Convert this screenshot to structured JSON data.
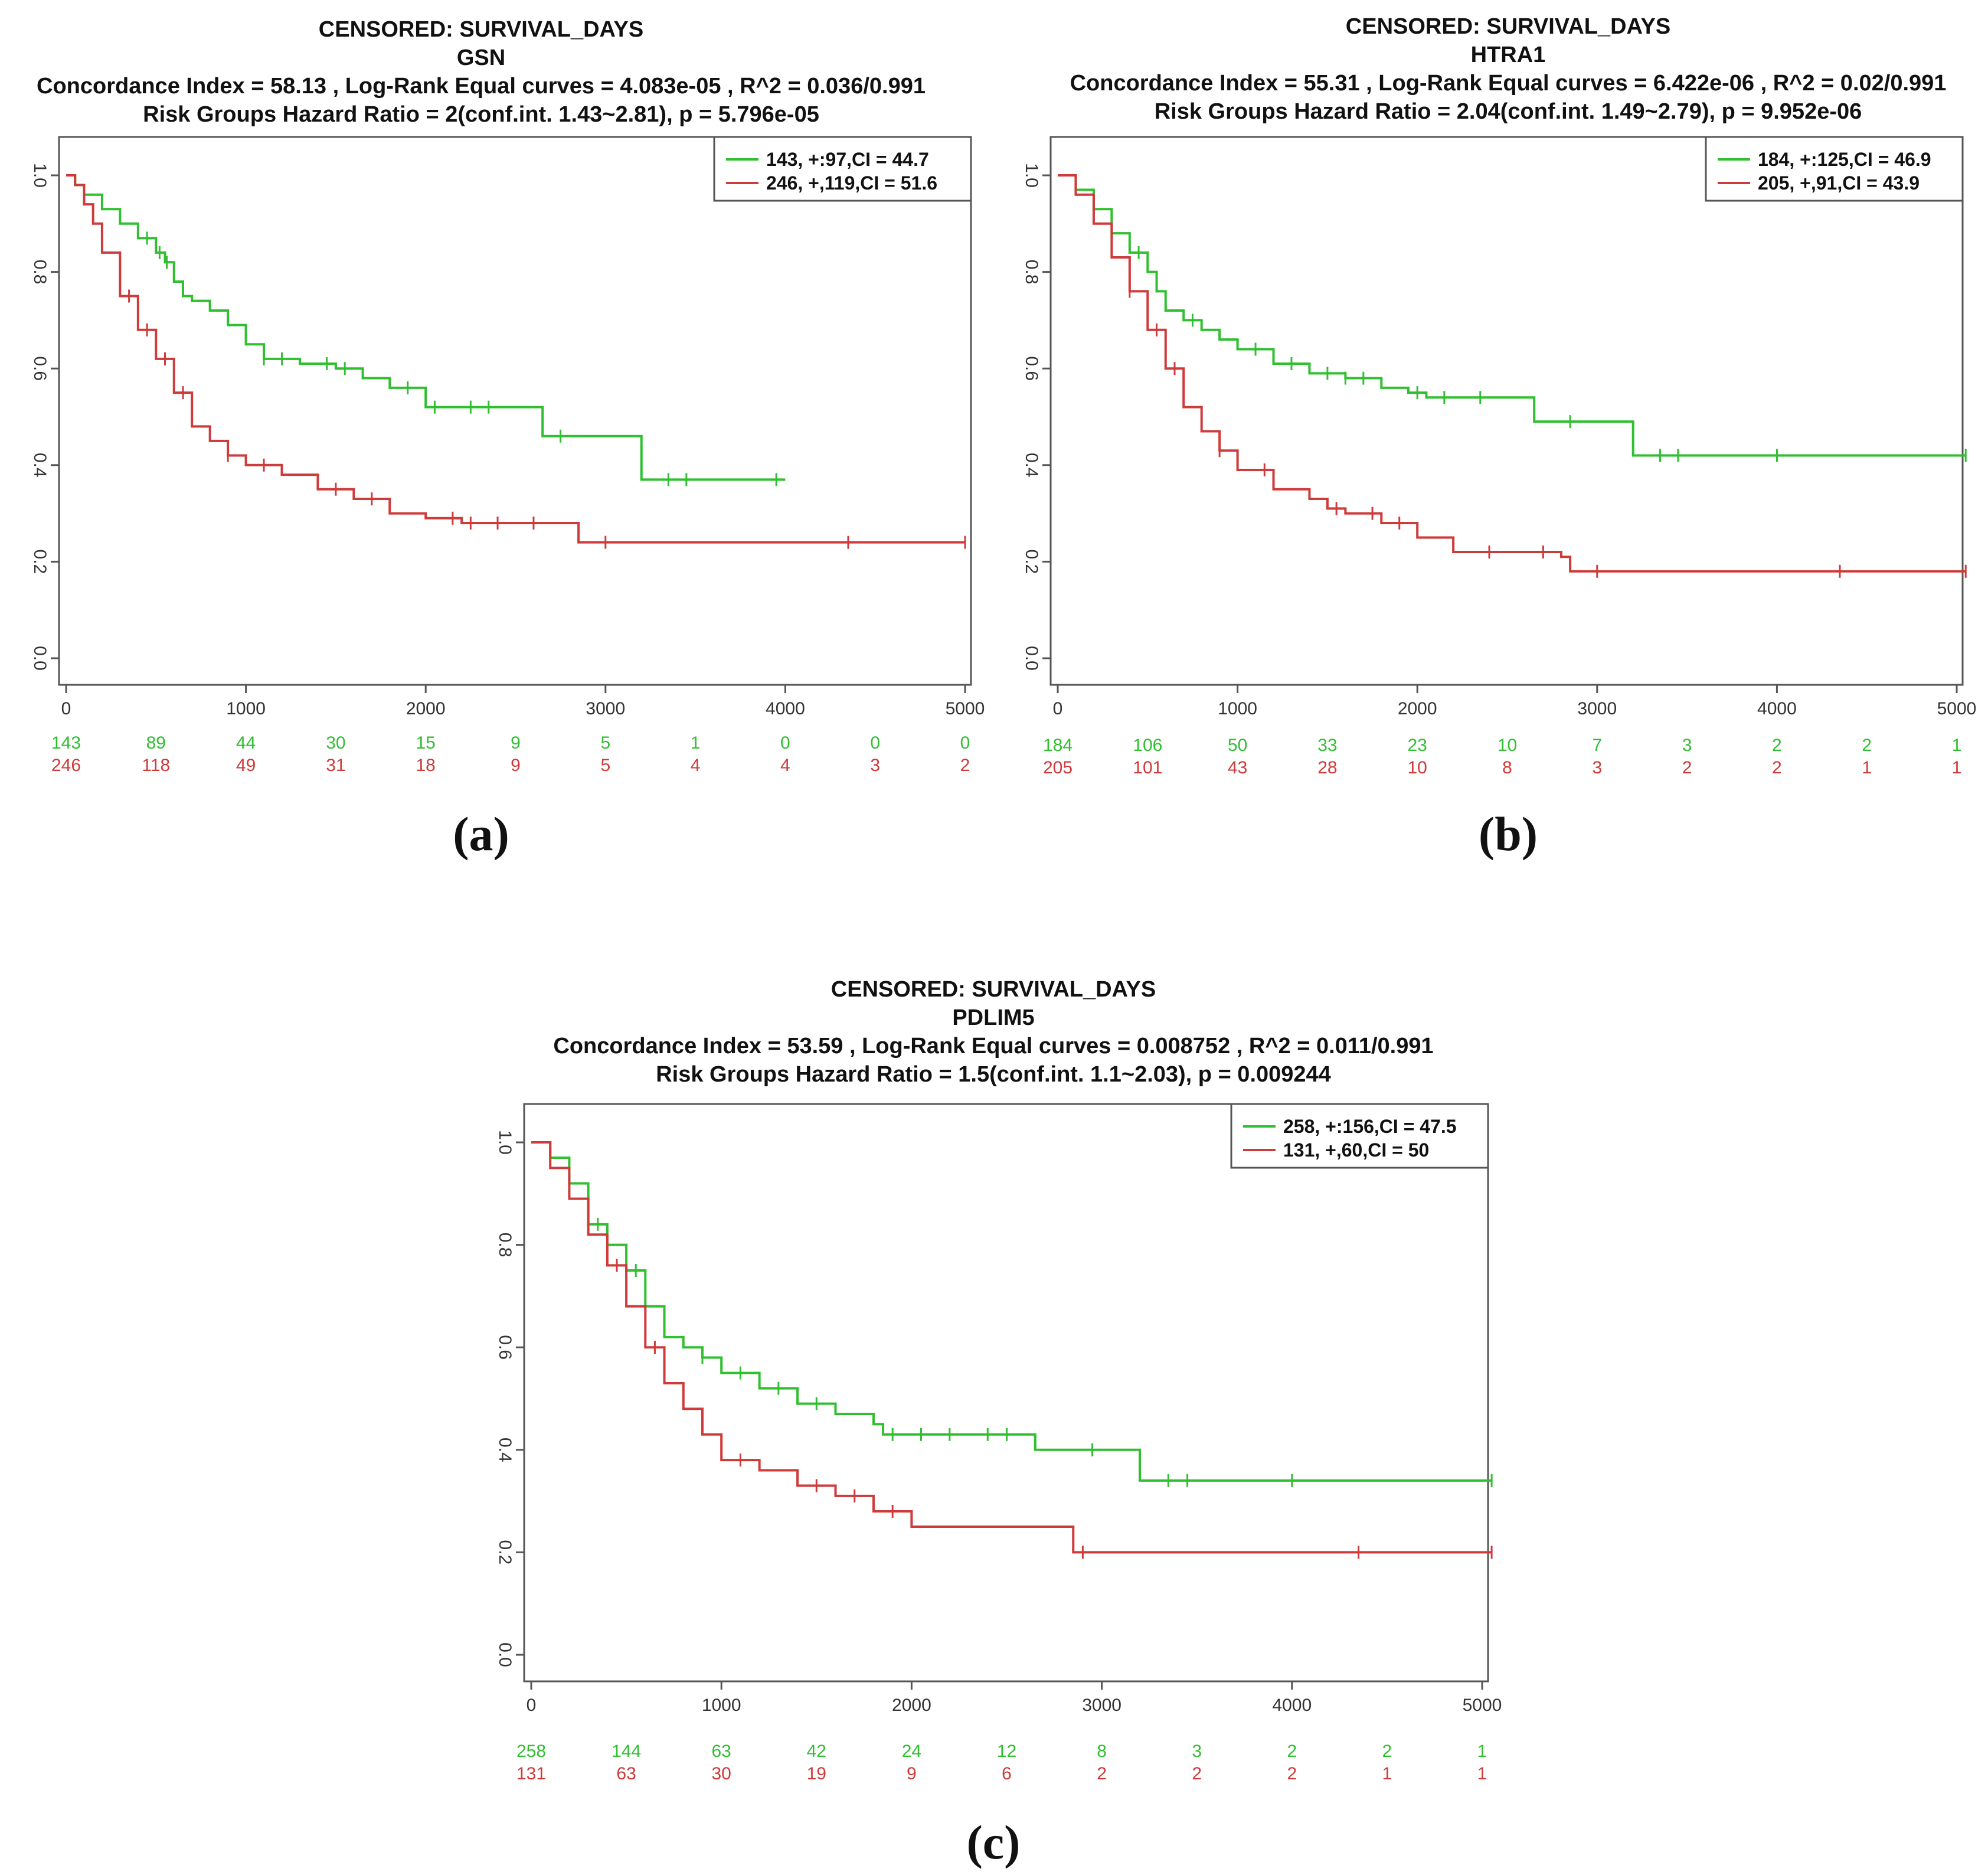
{
  "colors": {
    "green": "#2fbf2f",
    "red": "#cf3a3a",
    "axis": "#333333"
  },
  "chart_data": [
    {
      "type": "line",
      "panel_label": "(a)",
      "title_lines": [
        "CENSORED: SURVIVAL_DAYS",
        "GSN",
        "Concordance Index = 58.13 , Log-Rank Equal curves = 4.083e-05 , R^2 = 0.036/0.991",
        "Risk Groups Hazard Ratio = 2(conf.int. 1.43~2.81), p = 5.796e-05"
      ],
      "xlim": [
        0,
        5000
      ],
      "ylim": [
        0,
        1
      ],
      "x_ticks": [
        0,
        1000,
        2000,
        3000,
        4000,
        5000
      ],
      "y_ticks": [
        "0.0",
        "0.2",
        "0.4",
        "0.6",
        "0.8",
        "1.0"
      ],
      "legend": [
        "143, +:97,CI = 44.7",
        "246, +,119,CI = 51.6"
      ],
      "series": [
        {
          "name": "143, +:97,CI = 44.7",
          "color": "green",
          "x": [
            0,
            50,
            100,
            200,
            300,
            400,
            500,
            550,
            600,
            650,
            700,
            800,
            900,
            1000,
            1100,
            1300,
            1500,
            1650,
            1800,
            2000,
            2100,
            2650,
            2700,
            3200,
            3300,
            4000
          ],
          "y": [
            1.0,
            0.98,
            0.96,
            0.93,
            0.9,
            0.87,
            0.84,
            0.82,
            0.78,
            0.75,
            0.74,
            0.72,
            0.69,
            0.65,
            0.62,
            0.61,
            0.6,
            0.58,
            0.56,
            0.52,
            0.52,
            0.46,
            0.46,
            0.37,
            0.37,
            0.37
          ],
          "censor_x": [
            450,
            520,
            560,
            1100,
            1200,
            1450,
            1550,
            1900,
            2050,
            2250,
            2350,
            2750,
            3350,
            3450,
            3950
          ]
        },
        {
          "name": "246, +,119,CI = 51.6",
          "color": "red",
          "x": [
            0,
            50,
            100,
            150,
            200,
            300,
            400,
            500,
            600,
            700,
            800,
            900,
            1000,
            1200,
            1400,
            1600,
            1800,
            2000,
            2200,
            2500,
            2800,
            2850,
            3000,
            5000
          ],
          "y": [
            1.0,
            0.98,
            0.94,
            0.9,
            0.84,
            0.75,
            0.68,
            0.62,
            0.55,
            0.48,
            0.45,
            0.42,
            0.4,
            0.38,
            0.35,
            0.33,
            0.3,
            0.29,
            0.28,
            0.28,
            0.28,
            0.24,
            0.24,
            0.24
          ],
          "censor_x": [
            350,
            450,
            550,
            650,
            900,
            1100,
            1500,
            1700,
            2150,
            2250,
            2400,
            2600,
            3000,
            4350,
            5000
          ]
        }
      ],
      "risk_table": {
        "times": [
          0,
          500,
          1000,
          1500,
          2000,
          2500,
          3000,
          3500,
          4000,
          4500,
          5000
        ],
        "green": [
          "143",
          "89",
          "44",
          "30",
          "15",
          "9",
          "5",
          "1",
          "0",
          "0",
          "0"
        ],
        "red": [
          "246",
          "118",
          "49",
          "31",
          "18",
          "9",
          "5",
          "4",
          "4",
          "3",
          "2"
        ]
      }
    },
    {
      "type": "line",
      "panel_label": "(b)",
      "title_lines": [
        "CENSORED: SURVIVAL_DAYS",
        "HTRA1",
        "Concordance Index = 55.31 , Log-Rank Equal curves = 6.422e-06 , R^2 = 0.02/0.991",
        "Risk Groups Hazard Ratio = 2.04(conf.int. 1.49~2.79), p = 9.952e-06"
      ],
      "xlim": [
        0,
        5000
      ],
      "ylim": [
        0,
        1
      ],
      "x_ticks": [
        0,
        1000,
        2000,
        3000,
        4000,
        5000
      ],
      "y_ticks": [
        "0.0",
        "0.2",
        "0.4",
        "0.6",
        "0.8",
        "1.0"
      ],
      "legend": [
        "184, +:125,CI = 46.9",
        "205, +,91,CI = 43.9"
      ],
      "series": [
        {
          "name": "184, +:125,CI = 46.9",
          "color": "green",
          "x": [
            0,
            100,
            200,
            300,
            400,
            500,
            550,
            600,
            700,
            800,
            900,
            1000,
            1200,
            1400,
            1600,
            1800,
            1950,
            2050,
            2300,
            2650,
            2700,
            3200,
            3300,
            5050
          ],
          "y": [
            1.0,
            0.97,
            0.93,
            0.88,
            0.84,
            0.8,
            0.76,
            0.72,
            0.7,
            0.68,
            0.66,
            0.64,
            0.61,
            0.59,
            0.58,
            0.56,
            0.55,
            0.54,
            0.54,
            0.49,
            0.49,
            0.42,
            0.42,
            0.42
          ],
          "censor_x": [
            450,
            750,
            1100,
            1300,
            1500,
            1600,
            1700,
            2000,
            2150,
            2350,
            2850,
            3350,
            3450,
            4000,
            5050
          ]
        },
        {
          "name": "205, +,91,CI = 43.9",
          "color": "red",
          "x": [
            0,
            100,
            200,
            300,
            400,
            500,
            600,
            700,
            800,
            900,
            1000,
            1200,
            1400,
            1500,
            1600,
            1800,
            2000,
            2200,
            2650,
            2800,
            2850,
            3000,
            5050
          ],
          "y": [
            1.0,
            0.96,
            0.9,
            0.83,
            0.76,
            0.68,
            0.6,
            0.52,
            0.47,
            0.43,
            0.39,
            0.35,
            0.33,
            0.31,
            0.3,
            0.28,
            0.25,
            0.22,
            0.22,
            0.21,
            0.18,
            0.18,
            0.18
          ],
          "censor_x": [
            400,
            550,
            650,
            900,
            1150,
            1550,
            1750,
            1900,
            2400,
            2700,
            3000,
            4350,
            5050
          ]
        }
      ],
      "risk_table": {
        "times": [
          0,
          500,
          1000,
          1500,
          2000,
          2500,
          3000,
          3500,
          4000,
          4500,
          5000
        ],
        "green": [
          "184",
          "106",
          "50",
          "33",
          "23",
          "10",
          "7",
          "3",
          "2",
          "2",
          "1"
        ],
        "red": [
          "205",
          "101",
          "43",
          "28",
          "10",
          "8",
          "3",
          "2",
          "2",
          "1",
          "1"
        ]
      }
    },
    {
      "type": "line",
      "panel_label": "(c)",
      "title_lines": [
        "CENSORED: SURVIVAL_DAYS",
        "PDLIM5",
        "Concordance Index = 53.59 , Log-Rank Equal curves = 0.008752 , R^2 = 0.011/0.991",
        "Risk Groups Hazard Ratio = 1.5(conf.int. 1.1~2.03), p = 0.009244"
      ],
      "xlim": [
        0,
        5000
      ],
      "ylim": [
        0,
        1
      ],
      "x_ticks": [
        0,
        1000,
        2000,
        3000,
        4000,
        5000
      ],
      "y_ticks": [
        "0.0",
        "0.2",
        "0.4",
        "0.6",
        "0.8",
        "1.0"
      ],
      "legend": [
        "258, +:156,CI = 47.5",
        "131, +,60,CI = 50"
      ],
      "series": [
        {
          "name": "258, +:156,CI = 47.5",
          "color": "green",
          "x": [
            0,
            100,
            200,
            300,
            400,
            500,
            600,
            700,
            800,
            900,
            1000,
            1200,
            1400,
            1600,
            1800,
            1850,
            2000,
            2300,
            2650,
            2700,
            3200,
            3300,
            5050
          ],
          "y": [
            1.0,
            0.97,
            0.92,
            0.84,
            0.8,
            0.75,
            0.68,
            0.62,
            0.6,
            0.58,
            0.55,
            0.52,
            0.49,
            0.47,
            0.45,
            0.43,
            0.43,
            0.43,
            0.4,
            0.4,
            0.34,
            0.34,
            0.34
          ],
          "censor_x": [
            350,
            550,
            900,
            1100,
            1300,
            1500,
            1900,
            2050,
            2200,
            2400,
            2500,
            2950,
            3350,
            3450,
            4000,
            5050
          ]
        },
        {
          "name": "131, +,60,CI = 50",
          "color": "red",
          "x": [
            0,
            100,
            200,
            300,
            400,
            500,
            600,
            700,
            800,
            900,
            1000,
            1200,
            1400,
            1600,
            1800,
            2000,
            2200,
            2800,
            2850,
            5050
          ],
          "y": [
            1.0,
            0.95,
            0.89,
            0.82,
            0.76,
            0.68,
            0.6,
            0.53,
            0.48,
            0.43,
            0.38,
            0.36,
            0.33,
            0.31,
            0.28,
            0.25,
            0.25,
            0.25,
            0.2,
            0.2
          ],
          "censor_x": [
            450,
            650,
            1100,
            1500,
            1700,
            1900,
            2900,
            4350,
            5050
          ]
        }
      ],
      "risk_table": {
        "times": [
          0,
          500,
          1000,
          1500,
          2000,
          2500,
          3000,
          3500,
          4000,
          4500,
          5000
        ],
        "green": [
          "258",
          "144",
          "63",
          "42",
          "24",
          "12",
          "8",
          "3",
          "2",
          "2",
          "1"
        ],
        "red": [
          "131",
          "63",
          "30",
          "19",
          "9",
          "6",
          "2",
          "2",
          "2",
          "1",
          "1"
        ]
      }
    }
  ]
}
